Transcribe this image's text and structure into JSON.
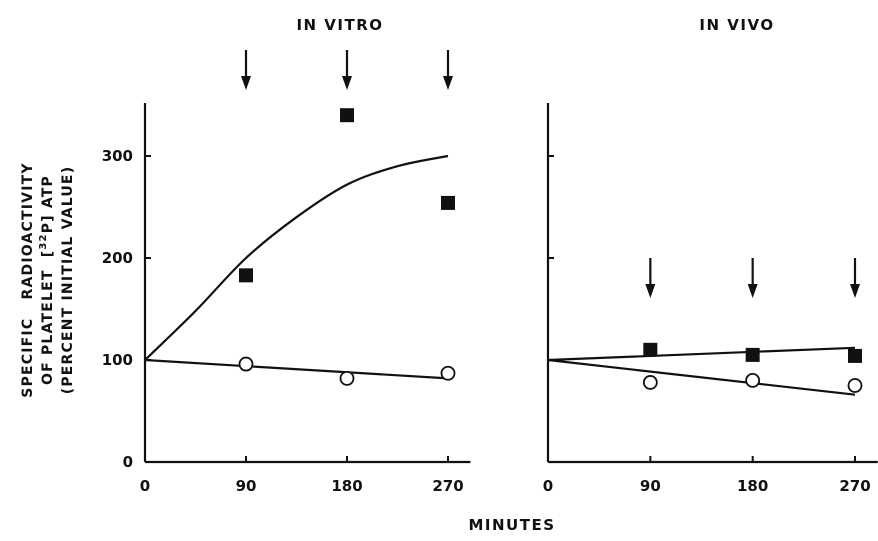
{
  "chart_data": [
    {
      "type": "scatter",
      "title": "IN VITRO",
      "x_ticks": [
        0,
        90,
        180,
        270
      ],
      "y_ticks": [
        0,
        100,
        200,
        300
      ],
      "xlim": [
        0,
        290
      ],
      "ylim": [
        0,
        350
      ],
      "arrows_at_x": [
        90,
        180,
        270
      ],
      "series": [
        {
          "marker": "filled-square",
          "x": [
            90,
            180,
            270
          ],
          "y": [
            183,
            340,
            254
          ]
        },
        {
          "marker": "open-circle",
          "x": [
            90,
            180,
            270
          ],
          "y": [
            96,
            82,
            87
          ]
        }
      ],
      "fit_lines": [
        {
          "x": [
            0,
            45,
            90,
            135,
            180,
            225,
            270
          ],
          "y": [
            100,
            148,
            200,
            240,
            272,
            290,
            300
          ]
        },
        {
          "x": [
            0,
            270
          ],
          "y": [
            100,
            82
          ]
        }
      ]
    },
    {
      "type": "scatter",
      "title": "IN VIVO",
      "x_ticks": [
        0,
        90,
        180,
        270
      ],
      "y_ticks": [
        0,
        100,
        200,
        300
      ],
      "xlim": [
        0,
        290
      ],
      "ylim": [
        0,
        350
      ],
      "arrows_at_x": [
        90,
        180,
        270
      ],
      "series": [
        {
          "marker": "filled-square",
          "x": [
            90,
            180,
            270
          ],
          "y": [
            110,
            105,
            104
          ]
        },
        {
          "marker": "open-circle",
          "x": [
            90,
            180,
            270
          ],
          "y": [
            78,
            80,
            75
          ]
        }
      ],
      "fit_lines": [
        {
          "x": [
            0,
            270
          ],
          "y": [
            100,
            112
          ]
        },
        {
          "x": [
            0,
            270
          ],
          "y": [
            100,
            66
          ]
        }
      ]
    }
  ],
  "ylabel_lines": {
    "line1": "SPECIFIC   RADIOACTIVITY",
    "line2_pre": "OF PLATELET  [",
    "line2_sup": "32",
    "line2_p": "P",
    "line2_post": "] ATP",
    "line3": "(PERCENT INITIAL VALUE)"
  },
  "xlabel": "MINUTES"
}
